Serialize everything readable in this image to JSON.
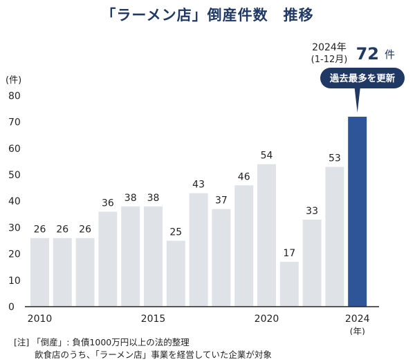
{
  "title": "「ラーメン店」倒産件数　推移",
  "chart_data": {
    "type": "bar",
    "categories": [
      "2010",
      "2011",
      "2012",
      "2013",
      "2014",
      "2015",
      "2016",
      "2017",
      "2018",
      "2019",
      "2020",
      "2021",
      "2022",
      "2023",
      "2024"
    ],
    "values": [
      26,
      26,
      26,
      36,
      38,
      38,
      25,
      43,
      37,
      46,
      54,
      17,
      33,
      53,
      72
    ],
    "x_tick_labels": [
      "2010",
      "2015",
      "2020",
      "2024"
    ],
    "x_unit": "(年)",
    "y_unit": "(件)",
    "ylim": [
      0,
      80
    ],
    "yticks": [
      0,
      10,
      20,
      30,
      40,
      50,
      60,
      70,
      80
    ],
    "colors": {
      "bar": "#dfe3e7",
      "highlight": "#2e5597",
      "callout": "#1f3864",
      "axis": "#222222"
    },
    "highlight": {
      "label_line1": "2024年",
      "label_line2": "(1-12月)",
      "value_text": "72",
      "value_unit": "件",
      "callout": "過去最多を更新"
    }
  },
  "note": {
    "line1": "[注] 「倒産」: 負債1000万円以上の法的整理",
    "line2": "飲食店のうち、「ラーメン店」事業を経営していた企業が対象"
  }
}
